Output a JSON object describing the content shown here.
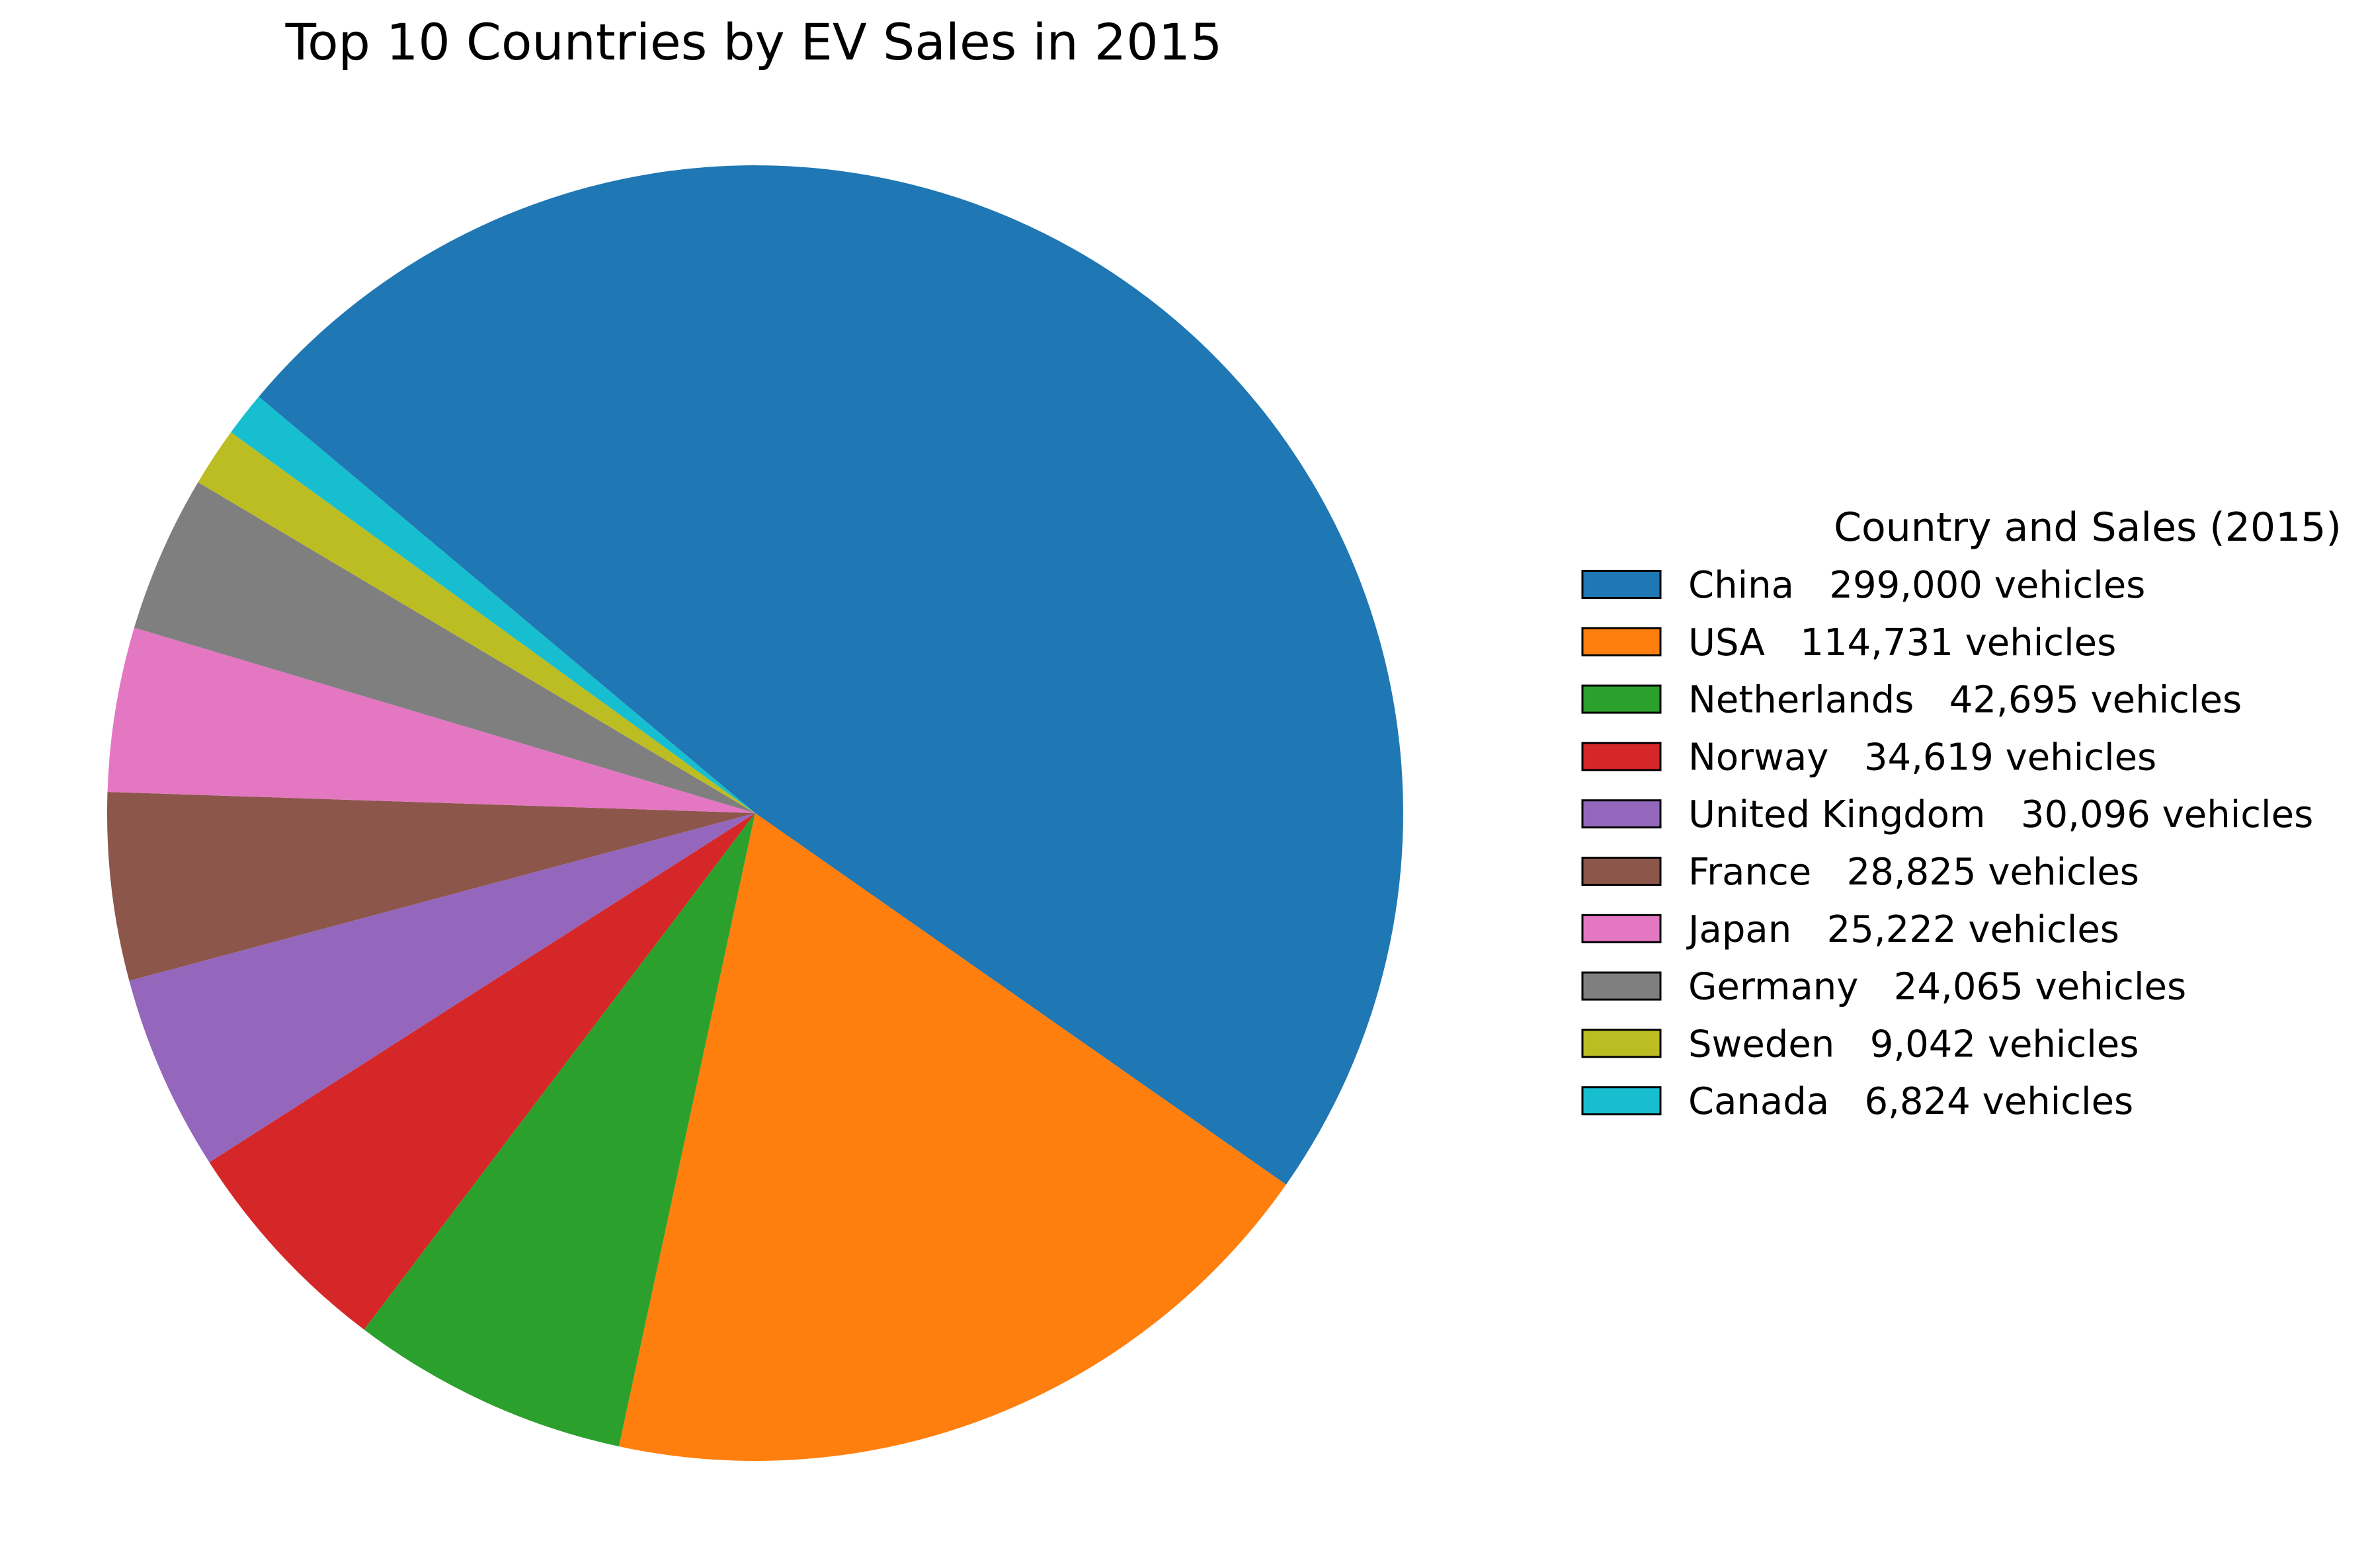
{
  "chart_data": {
    "type": "pie",
    "title": "Top 10 Countries by EV Sales in 2015",
    "legend": {
      "title": "Country and Sales (2015)",
      "placement": "right"
    },
    "start_angle_deg": 140,
    "direction": "clockwise",
    "slices": [
      {
        "label": "China",
        "value": 299000,
        "legend_label": "China   299,000 vehicles",
        "color": "#1f77b4"
      },
      {
        "label": "USA",
        "value": 114731,
        "legend_label": "USA   114,731 vehicles",
        "color": "#ff7f0e"
      },
      {
        "label": "Netherlands",
        "value": 42695,
        "legend_label": "Netherlands   42,695 vehicles",
        "color": "#2ca02c"
      },
      {
        "label": "Norway",
        "value": 34619,
        "legend_label": "Norway   34,619 vehicles",
        "color": "#d62728"
      },
      {
        "label": "United Kingdom",
        "value": 30096,
        "legend_label": "United Kingdom   30,096 vehicles",
        "color": "#9467bd"
      },
      {
        "label": "France",
        "value": 28825,
        "legend_label": "France   28,825 vehicles",
        "color": "#8c564b"
      },
      {
        "label": "Japan",
        "value": 25222,
        "legend_label": "Japan   25,222 vehicles",
        "color": "#e377c2"
      },
      {
        "label": "Germany",
        "value": 24065,
        "legend_label": "Germany   24,065 vehicles",
        "color": "#7f7f7f"
      },
      {
        "label": "Sweden",
        "value": 9042,
        "legend_label": "Sweden   9,042 vehicles",
        "color": "#bcbd22"
      },
      {
        "label": "Canada",
        "value": 6824,
        "legend_label": "Canada   6,824 vehicles",
        "color": "#17becf"
      }
    ]
  }
}
